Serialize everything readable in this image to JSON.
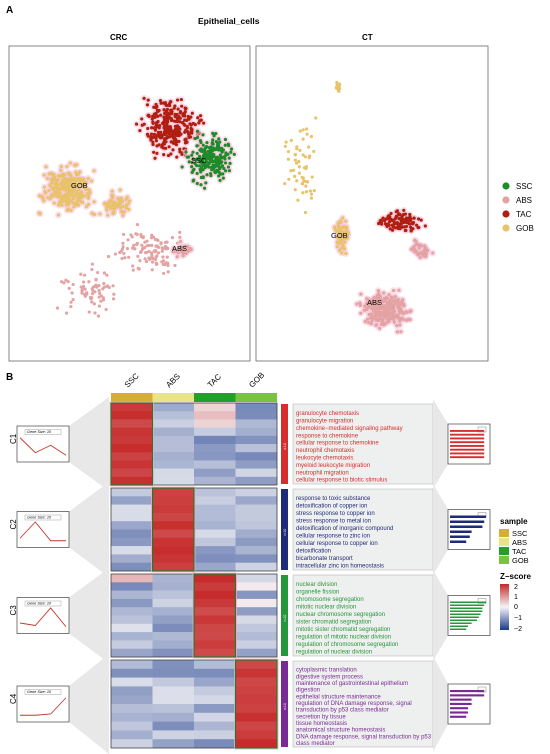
{
  "panel_a": {
    "label": "A",
    "title": "Epithelial_cells",
    "facets": [
      "CRC",
      "CT"
    ],
    "cluster_labels": {
      "crc": [
        "SSC",
        "GOB",
        "ABS"
      ],
      "ct": [
        "GOB",
        "ABS"
      ]
    },
    "legend": [
      {
        "label": "SSC",
        "color": "#1e8b2a"
      },
      {
        "label": "ABS",
        "color": "#e4a3a3"
      },
      {
        "label": "TAC",
        "color": "#b01e12"
      },
      {
        "label": "GOB",
        "color": "#e9c36a"
      }
    ]
  },
  "panel_b": {
    "label": "B",
    "columns": [
      {
        "label": "SSC",
        "color": "#d6ad3b"
      },
      {
        "label": "ABS",
        "color": "#e9e48a"
      },
      {
        "label": "TAC",
        "color": "#23a02a"
      },
      {
        "label": "GOB",
        "color": "#7ac342"
      }
    ],
    "clusters": [
      {
        "id": "C1",
        "gene_size": "Gene Size: 10",
        "n_label": "n:10",
        "color": "#d62d2d",
        "trend": [
          0.15,
          0.75,
          0.45,
          0.85
        ],
        "terms": [
          "granulocyte chemotaxis",
          "granulocyte migration",
          "chemokine−mediated signaling pathway",
          "response to chemokine",
          "cellular response to chemokine",
          "neutrophil chemotaxis",
          "leukocyte chemotaxis",
          "myeloid leukocyte migration",
          "neutrophil migration",
          "cellular response to biotic stimulus"
        ],
        "bars": [
          0.95,
          0.95,
          0.95,
          0.95,
          0.95,
          0.95,
          0.95,
          0.95
        ]
      },
      {
        "id": "C2",
        "gene_size": "Gene Size: 10",
        "n_label": "n:10",
        "color": "#1f2a78",
        "trend": [
          0.75,
          0.1,
          0.85,
          0.85
        ],
        "terms": [
          "response to toxic substance",
          "detoxification of copper ion",
          "stress response to copper ion",
          "stress response to metal ion",
          "detoxification of inorganic compound",
          "cellular response to zinc ion",
          "cellular response to copper ion",
          "detoxification",
          "bicarbonate transport",
          "intracellular zinc ion homeostasis"
        ],
        "bars": [
          1.0,
          0.95,
          0.9,
          0.6,
          0.55,
          0.45
        ]
      },
      {
        "id": "C3",
        "gene_size": "Gene Size: 10",
        "n_label": "n:10",
        "color": "#26963a",
        "trend": [
          0.7,
          0.8,
          0.1,
          0.85
        ],
        "terms": [
          "nuclear division",
          "organelle fission",
          "chromosome segregation",
          "mitotic nuclear division",
          "nuclear chromosome segregation",
          "sister chromatid segregation",
          "mitotic sister chromatid segregation",
          "regulation of mitotic nuclear division",
          "regulation of chromosome segregation",
          "regulation of nuclear division"
        ],
        "bars": [
          1.0,
          0.95,
          0.9,
          0.9,
          0.85,
          0.8,
          0.75,
          0.6,
          0.5,
          0.45
        ]
      },
      {
        "id": "C4",
        "gene_size": "Gene Size: 10",
        "n_label": "n:10",
        "color": "#7a2a95",
        "trend": [
          0.85,
          0.85,
          0.8,
          0.15
        ],
        "terms": [
          "cytoplasmic translation",
          "digestive system process",
          "maintenance of gastrointestinal epithelium",
          "digestion",
          "epithelial structure maintenance",
          "regulation of DNA damage response, signal",
          "transduction by p53 class mediator",
          "secretion by tissue",
          "tissue homeostasis",
          "anatomical structure homeostasis",
          "DNA damage response, signal transduction by p53",
          "class mediator"
        ],
        "bars": [
          0.95,
          0.95,
          0.6,
          0.6,
          0.5,
          0.5,
          0.45
        ]
      }
    ],
    "sample_legend": {
      "title": "sample",
      "items": [
        {
          "label": "SSC",
          "color": "#d6ad3b"
        },
        {
          "label": "ABS",
          "color": "#e9e48a"
        },
        {
          "label": "TAC",
          "color": "#23a02a"
        },
        {
          "label": "GOB",
          "color": "#7ac342"
        }
      ]
    },
    "zscore_legend": {
      "title": "Z−score",
      "ticks": [
        "2",
        "1",
        "0",
        "−1",
        "−2"
      ]
    }
  }
}
